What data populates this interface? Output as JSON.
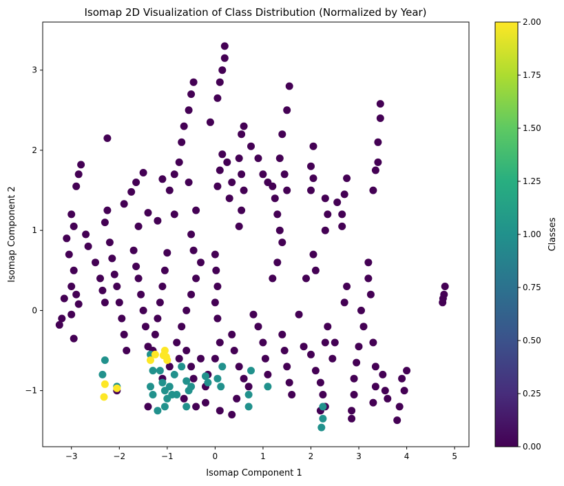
{
  "chart_data": {
    "type": "scatter",
    "title": "Isomap 2D Visualization of Class Distribution (Normalized by Year)",
    "xlabel": "Isomap Component 1",
    "ylabel": "Isomap Component 2",
    "xlim": [
      -3.6,
      5.3
    ],
    "ylim": [
      -1.7,
      3.6
    ],
    "xticks": [
      -3,
      -2,
      -1,
      0,
      1,
      2,
      3,
      4,
      5
    ],
    "yticks": [
      -1,
      0,
      1,
      2,
      3
    ],
    "grid": false,
    "colormap": "viridis",
    "colorbar": {
      "label": "Classes",
      "range": [
        0.0,
        2.0
      ],
      "ticks": [
        "0.00",
        "0.25",
        "0.50",
        "0.75",
        "1.00",
        "1.25",
        "1.50",
        "1.75",
        "2.00"
      ]
    },
    "series": [
      {
        "class": 0,
        "color": "#440154",
        "points": [
          [
            -2.25,
            2.15
          ],
          [
            -1.5,
            1.72
          ],
          [
            -1.65,
            1.6
          ],
          [
            -1.1,
            1.64
          ],
          [
            -1.9,
            1.33
          ],
          [
            -1.75,
            1.48
          ],
          [
            -1.4,
            1.22
          ],
          [
            -1.6,
            1.05
          ],
          [
            -1.2,
            1.12
          ],
          [
            -0.95,
            1.5
          ],
          [
            -0.85,
            1.2
          ],
          [
            -0.55,
            1.6
          ],
          [
            -0.4,
            1.25
          ],
          [
            -0.5,
            0.95
          ],
          [
            -0.45,
            0.75
          ],
          [
            -2.8,
            1.82
          ],
          [
            -2.9,
            1.55
          ],
          [
            -2.85,
            1.7
          ],
          [
            -3.0,
            1.2
          ],
          [
            -2.95,
            1.05
          ],
          [
            -3.1,
            0.9
          ],
          [
            -3.05,
            0.7
          ],
          [
            -2.95,
            0.5
          ],
          [
            -3.0,
            0.3
          ],
          [
            -2.9,
            0.2
          ],
          [
            -2.85,
            0.08
          ],
          [
            -3.2,
            -0.1
          ],
          [
            -3.15,
            0.15
          ],
          [
            -3.25,
            -0.18
          ],
          [
            -3.0,
            -0.05
          ],
          [
            -2.95,
            -0.35
          ],
          [
            -2.7,
            0.95
          ],
          [
            -2.65,
            0.8
          ],
          [
            -2.5,
            0.6
          ],
          [
            -2.4,
            0.4
          ],
          [
            -2.35,
            0.25
          ],
          [
            -2.3,
            0.1
          ],
          [
            -2.3,
            1.1
          ],
          [
            -2.25,
            1.25
          ],
          [
            -2.2,
            0.85
          ],
          [
            -2.15,
            0.65
          ],
          [
            -2.1,
            0.45
          ],
          [
            -2.05,
            0.3
          ],
          [
            -2.0,
            0.1
          ],
          [
            -1.95,
            -0.1
          ],
          [
            -1.9,
            -0.3
          ],
          [
            -1.85,
            -0.5
          ],
          [
            -1.7,
            0.75
          ],
          [
            -1.65,
            0.55
          ],
          [
            -1.6,
            0.4
          ],
          [
            -1.55,
            0.2
          ],
          [
            -1.5,
            0.0
          ],
          [
            -1.45,
            -0.2
          ],
          [
            -1.4,
            -0.45
          ],
          [
            -1.0,
            0.72
          ],
          [
            -1.05,
            0.5
          ],
          [
            -1.1,
            0.3
          ],
          [
            -1.15,
            0.1
          ],
          [
            -1.2,
            -0.1
          ],
          [
            -1.25,
            -0.3
          ],
          [
            -1.3,
            -0.5
          ],
          [
            -0.75,
            1.85
          ],
          [
            -0.7,
            2.1
          ],
          [
            -0.65,
            2.3
          ],
          [
            -0.55,
            2.5
          ],
          [
            -0.5,
            2.7
          ],
          [
            -0.45,
            2.85
          ],
          [
            -0.85,
            1.7
          ],
          [
            -0.3,
            0.6
          ],
          [
            -0.4,
            0.4
          ],
          [
            -0.5,
            0.2
          ],
          [
            -0.6,
            0.0
          ],
          [
            -0.7,
            -0.2
          ],
          [
            -0.8,
            -0.4
          ],
          [
            -0.6,
            -0.5
          ],
          [
            -0.5,
            -0.7
          ],
          [
            -0.45,
            -0.85
          ],
          [
            -0.3,
            -0.6
          ],
          [
            -0.2,
            -0.95
          ],
          [
            -0.15,
            -0.8
          ],
          [
            0.05,
            2.65
          ],
          [
            0.1,
            2.85
          ],
          [
            0.15,
            3.0
          ],
          [
            0.2,
            3.15
          ],
          [
            0.2,
            3.3
          ],
          [
            -0.1,
            2.35
          ],
          [
            0.05,
            1.55
          ],
          [
            0.1,
            1.75
          ],
          [
            0.15,
            1.95
          ],
          [
            0.25,
            1.85
          ],
          [
            0.3,
            1.4
          ],
          [
            0.35,
            1.6
          ],
          [
            0.0,
            0.7
          ],
          [
            0.02,
            0.5
          ],
          [
            0.05,
            0.3
          ],
          [
            0.0,
            0.1
          ],
          [
            0.05,
            -0.1
          ],
          [
            0.1,
            -0.4
          ],
          [
            0.0,
            -0.6
          ],
          [
            0.55,
            2.2
          ],
          [
            0.6,
            2.3
          ],
          [
            0.5,
            1.9
          ],
          [
            0.55,
            1.7
          ],
          [
            0.6,
            1.5
          ],
          [
            0.55,
            1.25
          ],
          [
            0.5,
            1.05
          ],
          [
            0.35,
            -0.3
          ],
          [
            0.4,
            -0.5
          ],
          [
            0.5,
            -0.7
          ],
          [
            0.6,
            -0.85
          ],
          [
            0.7,
            -0.95
          ],
          [
            0.8,
            -0.05
          ],
          [
            0.9,
            -0.2
          ],
          [
            1.0,
            -0.4
          ],
          [
            1.05,
            -0.6
          ],
          [
            1.1,
            -0.8
          ],
          [
            0.75,
            2.05
          ],
          [
            0.9,
            1.9
          ],
          [
            1.0,
            1.7
          ],
          [
            1.1,
            1.6
          ],
          [
            1.2,
            1.55
          ],
          [
            1.25,
            1.4
          ],
          [
            1.3,
            1.2
          ],
          [
            1.35,
            1.0
          ],
          [
            1.4,
            0.85
          ],
          [
            1.3,
            0.6
          ],
          [
            1.2,
            0.4
          ],
          [
            1.4,
            2.2
          ],
          [
            1.5,
            2.5
          ],
          [
            1.55,
            2.8
          ],
          [
            1.35,
            1.9
          ],
          [
            1.45,
            1.7
          ],
          [
            1.5,
            1.5
          ],
          [
            1.4,
            -0.3
          ],
          [
            1.45,
            -0.5
          ],
          [
            1.5,
            -0.7
          ],
          [
            1.55,
            -0.9
          ],
          [
            1.6,
            -1.05
          ],
          [
            2.05,
            2.05
          ],
          [
            2.0,
            1.8
          ],
          [
            2.0,
            1.5
          ],
          [
            2.05,
            1.65
          ],
          [
            1.75,
            -0.05
          ],
          [
            1.9,
            0.4
          ],
          [
            2.05,
            0.7
          ],
          [
            2.1,
            0.5
          ],
          [
            1.85,
            -0.45
          ],
          [
            2.0,
            -0.55
          ],
          [
            2.1,
            -0.75
          ],
          [
            2.2,
            -0.9
          ],
          [
            2.25,
            -1.05
          ],
          [
            2.3,
            -1.2
          ],
          [
            2.2,
            -1.25
          ],
          [
            2.3,
            -0.4
          ],
          [
            2.35,
            -0.2
          ],
          [
            2.3,
            1.4
          ],
          [
            2.35,
            1.2
          ],
          [
            2.3,
            1.0
          ],
          [
            2.55,
            1.35
          ],
          [
            2.65,
            1.2
          ],
          [
            2.75,
            1.65
          ],
          [
            2.7,
            1.45
          ],
          [
            2.65,
            1.05
          ],
          [
            2.5,
            -0.4
          ],
          [
            2.45,
            -0.6
          ],
          [
            2.75,
            0.3
          ],
          [
            2.7,
            0.1
          ],
          [
            3.05,
            0.0
          ],
          [
            3.1,
            -0.2
          ],
          [
            3.0,
            -0.45
          ],
          [
            2.95,
            -0.65
          ],
          [
            2.9,
            -0.85
          ],
          [
            2.9,
            -1.05
          ],
          [
            2.85,
            -1.25
          ],
          [
            2.85,
            -1.35
          ],
          [
            3.2,
            0.6
          ],
          [
            3.2,
            0.4
          ],
          [
            3.25,
            0.2
          ],
          [
            3.3,
            1.5
          ],
          [
            3.35,
            1.75
          ],
          [
            3.4,
            1.85
          ],
          [
            3.4,
            2.1
          ],
          [
            3.45,
            2.4
          ],
          [
            3.45,
            2.58
          ],
          [
            3.3,
            -0.4
          ],
          [
            3.35,
            -0.7
          ],
          [
            3.35,
            -0.95
          ],
          [
            3.3,
            -1.15
          ],
          [
            3.5,
            -0.8
          ],
          [
            3.55,
            -1.0
          ],
          [
            3.6,
            -1.1
          ],
          [
            3.9,
            -0.85
          ],
          [
            3.95,
            -1.0
          ],
          [
            4.0,
            -0.75
          ],
          [
            3.85,
            -1.2
          ],
          [
            3.8,
            -1.37
          ],
          [
            4.75,
            0.1
          ],
          [
            4.78,
            0.2
          ],
          [
            4.8,
            0.3
          ],
          [
            4.76,
            0.15
          ],
          [
            -0.75,
            -0.6
          ],
          [
            -0.95,
            -0.7
          ],
          [
            -1.1,
            -0.85
          ],
          [
            -0.65,
            -1.1
          ],
          [
            -0.4,
            -1.2
          ],
          [
            -0.2,
            -1.15
          ],
          [
            0.1,
            -1.25
          ],
          [
            0.35,
            -1.3
          ],
          [
            0.45,
            -1.1
          ],
          [
            -1.4,
            -1.2
          ],
          [
            -2.05,
            -1.0
          ]
        ]
      },
      {
        "class": 1,
        "color": "#21918c",
        "points": [
          [
            -2.3,
            -0.62
          ],
          [
            -2.35,
            -0.8
          ],
          [
            -2.05,
            -0.95
          ],
          [
            -1.35,
            -0.55
          ],
          [
            -1.3,
            -0.75
          ],
          [
            -1.35,
            -0.95
          ],
          [
            -1.3,
            -1.05
          ],
          [
            -1.15,
            -0.75
          ],
          [
            -1.1,
            -0.9
          ],
          [
            -1.05,
            -1.0
          ],
          [
            -1.0,
            -1.1
          ],
          [
            -0.95,
            -0.95
          ],
          [
            -0.9,
            -1.05
          ],
          [
            -0.85,
            -0.8
          ],
          [
            -1.2,
            -1.25
          ],
          [
            -1.05,
            -1.2
          ],
          [
            -0.8,
            -1.05
          ],
          [
            -0.7,
            -0.7
          ],
          [
            -0.6,
            -0.88
          ],
          [
            -0.55,
            -1.0
          ],
          [
            -0.6,
            -1.2
          ],
          [
            -0.5,
            -0.95
          ],
          [
            -0.2,
            -0.82
          ],
          [
            -0.15,
            -0.9
          ],
          [
            0.05,
            -0.85
          ],
          [
            0.15,
            -0.7
          ],
          [
            0.12,
            -0.95
          ],
          [
            0.7,
            -1.05
          ],
          [
            0.75,
            -0.75
          ],
          [
            0.7,
            -1.2
          ],
          [
            1.1,
            -0.95
          ],
          [
            2.25,
            -1.2
          ],
          [
            2.25,
            -1.35
          ],
          [
            2.22,
            -1.46
          ]
        ]
      },
      {
        "class": 2,
        "color": "#fde725",
        "points": [
          [
            -2.3,
            -0.92
          ],
          [
            -2.32,
            -1.08
          ],
          [
            -2.05,
            -0.97
          ],
          [
            -1.35,
            -0.62
          ],
          [
            -1.25,
            -0.55
          ],
          [
            -1.05,
            -0.5
          ],
          [
            -1.02,
            -0.58
          ],
          [
            -1.0,
            -0.62
          ],
          [
            -1.08,
            -0.56
          ]
        ]
      }
    ]
  }
}
